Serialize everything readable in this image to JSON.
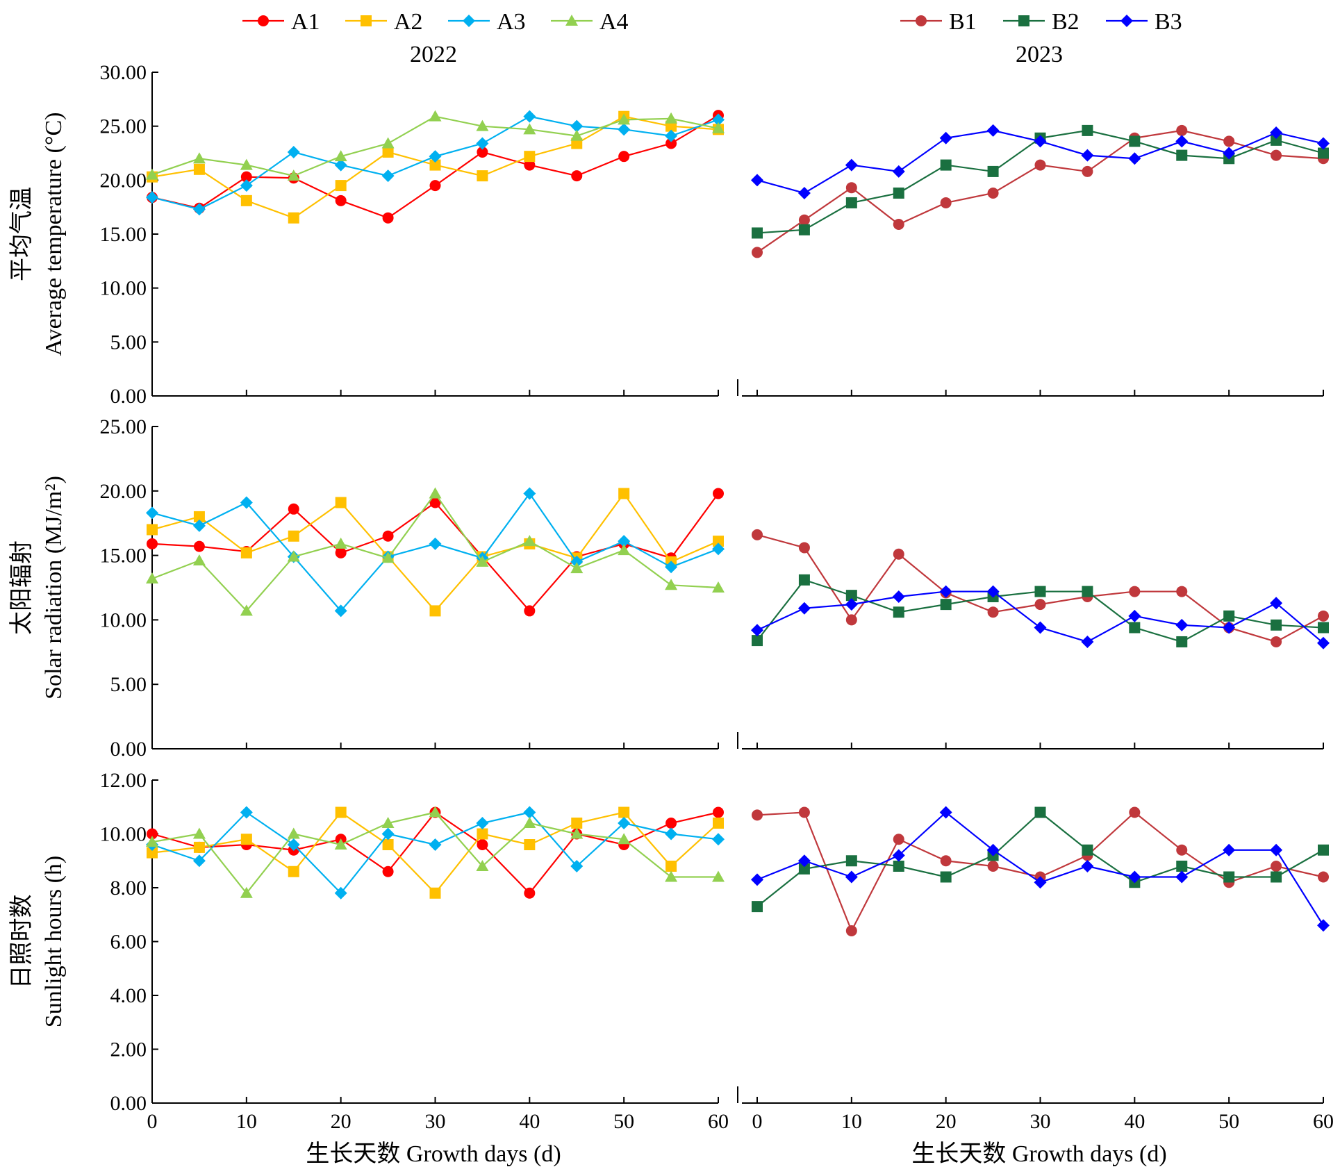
{
  "legend": {
    "left": [
      {
        "name": "A1",
        "color": "#ff0000",
        "marker": "circle"
      },
      {
        "name": "A2",
        "color": "#ffc000",
        "marker": "square"
      },
      {
        "name": "A3",
        "color": "#00b0f0",
        "marker": "diamond"
      },
      {
        "name": "A4",
        "color": "#92d050",
        "marker": "triangle"
      }
    ],
    "right": [
      {
        "name": "B1",
        "color": "#c0383c",
        "marker": "circle"
      },
      {
        "name": "B2",
        "color": "#1a7040",
        "marker": "square"
      },
      {
        "name": "B3",
        "color": "#0000ff",
        "marker": "diamond"
      }
    ]
  },
  "years": {
    "left": "2022",
    "right": "2023"
  },
  "xlabel": "生长天数 Growth days (d)",
  "chart_data": [
    {
      "type": "line",
      "row": 0,
      "ylabel_cn": "平均气温",
      "ylabel_en": "Average temperature (°C)",
      "ylim": [
        0,
        30
      ],
      "yticks": [
        "0.00",
        "5.00",
        "10.00",
        "15.00",
        "20.00",
        "25.00",
        "30.00"
      ],
      "xlim": [
        0,
        60
      ],
      "xticks": [
        "0",
        "10",
        "20",
        "30",
        "40",
        "50",
        "60"
      ],
      "x": [
        0,
        5,
        10,
        15,
        20,
        25,
        30,
        35,
        40,
        45,
        50,
        55,
        60
      ],
      "panels": [
        {
          "year": "2022",
          "series": [
            {
              "name": "A1",
              "values": [
                18.4,
                17.4,
                20.3,
                20.2,
                18.1,
                16.5,
                19.5,
                22.6,
                21.4,
                20.4,
                22.2,
                23.4,
                26.0
              ]
            },
            {
              "name": "A2",
              "values": [
                20.3,
                21.0,
                18.1,
                16.5,
                19.5,
                22.6,
                21.4,
                20.4,
                22.2,
                23.4,
                25.9,
                25.0,
                24.7
              ]
            },
            {
              "name": "A3",
              "values": [
                18.4,
                17.3,
                19.5,
                22.6,
                21.4,
                20.4,
                22.2,
                23.4,
                25.9,
                25.0,
                24.7,
                24.1,
                25.6
              ]
            },
            {
              "name": "A4",
              "values": [
                20.5,
                22.0,
                21.4,
                20.4,
                22.2,
                23.4,
                25.9,
                25.0,
                24.7,
                24.1,
                25.6,
                25.7,
                24.8
              ]
            }
          ]
        },
        {
          "year": "2023",
          "series": [
            {
              "name": "B1",
              "values": [
                13.3,
                16.3,
                19.3,
                15.9,
                17.9,
                18.8,
                21.4,
                20.8,
                23.9,
                24.6,
                23.6,
                22.3,
                22.0
              ]
            },
            {
              "name": "B2",
              "values": [
                15.1,
                15.4,
                17.9,
                18.8,
                21.4,
                20.8,
                23.9,
                24.6,
                23.6,
                22.3,
                22.0,
                23.7,
                22.5
              ]
            },
            {
              "name": "B3",
              "values": [
                20.0,
                18.8,
                21.4,
                20.8,
                23.9,
                24.6,
                23.6,
                22.3,
                22.0,
                23.6,
                22.5,
                24.4,
                23.4
              ]
            }
          ]
        }
      ]
    },
    {
      "type": "line",
      "row": 1,
      "ylabel_cn": "太阳辐射",
      "ylabel_en": "Solar radiation (MJ/m²)",
      "ylim": [
        0,
        25
      ],
      "yticks": [
        "0.00",
        "5.00",
        "10.00",
        "15.00",
        "20.00",
        "25.00"
      ],
      "xlim": [
        0,
        60
      ],
      "xticks": [
        "0",
        "10",
        "20",
        "30",
        "40",
        "50",
        "60"
      ],
      "x": [
        0,
        5,
        10,
        15,
        20,
        25,
        30,
        35,
        40,
        45,
        50,
        55,
        60
      ],
      "panels": [
        {
          "year": "2022",
          "series": [
            {
              "name": "A1",
              "values": [
                15.9,
                15.7,
                15.3,
                18.6,
                15.2,
                16.5,
                19.1,
                14.9,
                10.7,
                14.9,
                15.9,
                14.8,
                19.8
              ]
            },
            {
              "name": "A2",
              "values": [
                17.0,
                18.0,
                15.2,
                16.5,
                19.1,
                14.9,
                10.7,
                14.9,
                15.9,
                14.8,
                19.8,
                14.5,
                16.1
              ]
            },
            {
              "name": "A3",
              "values": [
                18.3,
                17.3,
                19.1,
                14.9,
                10.7,
                14.9,
                15.9,
                14.8,
                19.8,
                14.5,
                16.1,
                14.1,
                15.5
              ]
            },
            {
              "name": "A4",
              "values": [
                13.2,
                14.6,
                10.7,
                14.9,
                15.9,
                14.8,
                19.8,
                14.5,
                16.1,
                14.0,
                15.4,
                12.7,
                12.5
              ]
            }
          ]
        },
        {
          "year": "2023",
          "series": [
            {
              "name": "B1",
              "values": [
                16.6,
                15.6,
                10.0,
                15.1,
                12.1,
                10.6,
                11.2,
                11.8,
                12.2,
                12.2,
                9.4,
                8.3,
                10.3
              ]
            },
            {
              "name": "B2",
              "values": [
                8.4,
                13.1,
                11.9,
                10.6,
                11.2,
                11.8,
                12.2,
                12.2,
                9.4,
                8.3,
                10.3,
                9.6,
                9.4
              ]
            },
            {
              "name": "B3",
              "values": [
                9.2,
                10.9,
                11.2,
                11.8,
                12.2,
                12.2,
                9.4,
                8.3,
                10.3,
                9.6,
                9.4,
                11.3,
                8.2
              ]
            }
          ]
        }
      ]
    },
    {
      "type": "line",
      "row": 2,
      "ylabel_cn": "日照时数",
      "ylabel_en": "Sunlight hours (h)",
      "ylim": [
        0,
        12
      ],
      "yticks": [
        "0.00",
        "2.00",
        "4.00",
        "6.00",
        "8.00",
        "10.00",
        "12.00"
      ],
      "xlim": [
        0,
        60
      ],
      "xticks": [
        "0",
        "10",
        "20",
        "30",
        "40",
        "50",
        "60"
      ],
      "x": [
        0,
        5,
        10,
        15,
        20,
        25,
        30,
        35,
        40,
        45,
        50,
        55,
        60
      ],
      "panels": [
        {
          "year": "2022",
          "series": [
            {
              "name": "A1",
              "values": [
                10.0,
                9.5,
                9.6,
                9.4,
                9.8,
                8.6,
                10.8,
                9.6,
                7.8,
                10.0,
                9.6,
                10.4,
                10.8
              ]
            },
            {
              "name": "A2",
              "values": [
                9.3,
                9.5,
                9.8,
                8.6,
                10.8,
                9.6,
                7.8,
                10.0,
                9.6,
                10.4,
                10.8,
                8.8,
                10.4
              ]
            },
            {
              "name": "A3",
              "values": [
                9.6,
                9.0,
                10.8,
                9.6,
                7.8,
                10.0,
                9.6,
                10.4,
                10.8,
                8.8,
                10.4,
                10.0,
                9.8
              ]
            },
            {
              "name": "A4",
              "values": [
                9.7,
                10.0,
                7.8,
                10.0,
                9.6,
                10.4,
                10.8,
                8.8,
                10.4,
                10.0,
                9.8,
                8.4,
                8.4
              ]
            }
          ]
        },
        {
          "year": "2023",
          "series": [
            {
              "name": "B1",
              "values": [
                10.7,
                10.8,
                6.4,
                9.8,
                9.0,
                8.8,
                8.4,
                9.2,
                10.8,
                9.4,
                8.2,
                8.8,
                8.4
              ]
            },
            {
              "name": "B2",
              "values": [
                7.3,
                8.7,
                9.0,
                8.8,
                8.4,
                9.2,
                10.8,
                9.4,
                8.2,
                8.8,
                8.4,
                8.4,
                9.4
              ]
            },
            {
              "name": "B3",
              "values": [
                8.3,
                9.0,
                8.4,
                9.2,
                10.8,
                9.4,
                8.2,
                8.8,
                8.4,
                8.4,
                9.4,
                9.4,
                6.6
              ]
            }
          ]
        }
      ]
    }
  ]
}
